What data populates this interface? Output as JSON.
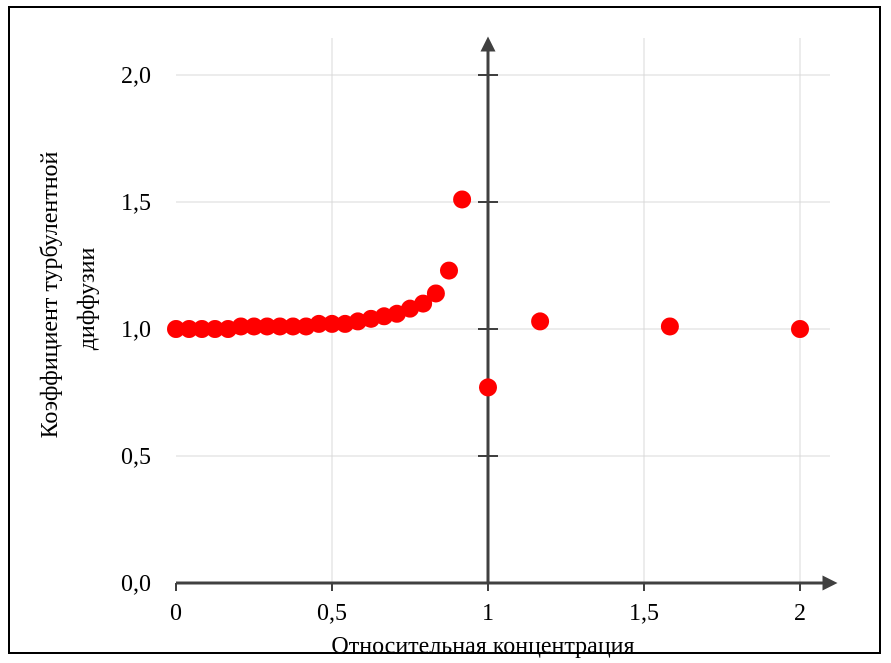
{
  "chart_data": {
    "type": "scatter",
    "title": "",
    "xlabel": "Относительная концентрация",
    "ylabel_lines": [
      "Коэффициент турбулентной",
      "диффузии"
    ],
    "xlim": [
      0,
      2
    ],
    "ylim": [
      0,
      2
    ],
    "x_ticks": [
      0,
      0.5,
      1,
      1.5,
      2
    ],
    "x_tick_labels": [
      "0",
      "0,5",
      "1",
      "1,5",
      "2"
    ],
    "y_ticks": [
      0,
      0.5,
      1,
      1.5,
      2
    ],
    "y_tick_labels": [
      "0,0",
      "0,5",
      "1,0",
      "1,5",
      "2,0"
    ],
    "grid": true,
    "marker_color": "#ff0000",
    "series": [
      {
        "points": [
          {
            "x": 0.0,
            "y": 1.0
          },
          {
            "x": 0.042,
            "y": 1.0
          },
          {
            "x": 0.083,
            "y": 1.0
          },
          {
            "x": 0.125,
            "y": 1.0
          },
          {
            "x": 0.167,
            "y": 1.0
          },
          {
            "x": 0.208,
            "y": 1.01
          },
          {
            "x": 0.25,
            "y": 1.01
          },
          {
            "x": 0.292,
            "y": 1.01
          },
          {
            "x": 0.333,
            "y": 1.01
          },
          {
            "x": 0.375,
            "y": 1.01
          },
          {
            "x": 0.417,
            "y": 1.01
          },
          {
            "x": 0.458,
            "y": 1.02
          },
          {
            "x": 0.5,
            "y": 1.02
          },
          {
            "x": 0.542,
            "y": 1.02
          },
          {
            "x": 0.583,
            "y": 1.03
          },
          {
            "x": 0.625,
            "y": 1.04
          },
          {
            "x": 0.667,
            "y": 1.05
          },
          {
            "x": 0.708,
            "y": 1.06
          },
          {
            "x": 0.75,
            "y": 1.08
          },
          {
            "x": 0.792,
            "y": 1.1
          },
          {
            "x": 0.833,
            "y": 1.14
          },
          {
            "x": 0.875,
            "y": 1.23
          },
          {
            "x": 0.917,
            "y": 1.51
          },
          {
            "x": 1.0,
            "y": 0.77
          },
          {
            "x": 1.167,
            "y": 1.03
          },
          {
            "x": 1.583,
            "y": 1.01
          },
          {
            "x": 2.0,
            "y": 1.0
          }
        ]
      }
    ]
  }
}
